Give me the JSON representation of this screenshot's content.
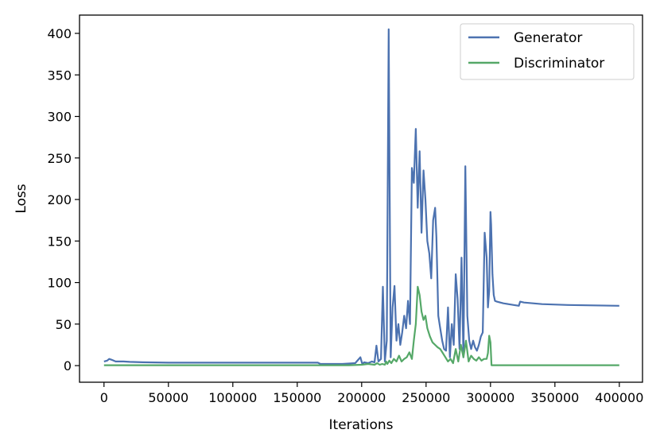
{
  "chart_data": {
    "type": "line",
    "title": "",
    "xlabel": "Iterations",
    "ylabel": "Loss",
    "xlim": [
      -19000,
      418000
    ],
    "ylim": [
      -20,
      422
    ],
    "xticks": [
      0,
      50000,
      100000,
      150000,
      200000,
      250000,
      300000,
      350000,
      400000
    ],
    "yticks": [
      0,
      50,
      100,
      150,
      200,
      250,
      300,
      350,
      400
    ],
    "grid": false,
    "legend": "top-right",
    "series": [
      {
        "name": "Generator",
        "color": "#4c72b0",
        "x": [
          0,
          2500,
          4000,
          6000,
          9000,
          15000,
          20000,
          30000,
          50000,
          80000,
          100000,
          130000,
          150000,
          166000,
          168000,
          175000,
          185000,
          195000,
          199000,
          200500,
          202000,
          205000,
          208000,
          210000,
          211500,
          213000,
          215000,
          216500,
          218000,
          219500,
          221000,
          222500,
          224000,
          225500,
          227000,
          228500,
          230000,
          231500,
          233000,
          234500,
          236000,
          237500,
          239000,
          240500,
          242000,
          243500,
          245000,
          246500,
          248000,
          249500,
          251000,
          252500,
          254000,
          255500,
          257000,
          258000,
          259500,
          261000,
          262500,
          264000,
          265500,
          267000,
          268500,
          270000,
          271500,
          273000,
          274500,
          276000,
          277500,
          279000,
          280500,
          282000,
          283500,
          285000,
          286500,
          288000,
          289500,
          291000,
          292500,
          294000,
          295500,
          297000,
          298000,
          299000,
          300000,
          300500,
          301500,
          302500,
          303500,
          305000,
          310000,
          318000,
          322000,
          323000,
          326000,
          340000,
          360000,
          380000,
          400000
        ],
        "y": [
          5,
          6,
          8,
          7,
          5,
          5,
          4.5,
          4,
          3.5,
          3.5,
          3.5,
          3.5,
          3.5,
          3.5,
          2,
          2,
          2,
          3,
          10,
          2,
          4,
          3,
          5,
          4,
          24,
          5,
          8,
          95,
          5,
          30,
          405,
          10,
          70,
          96,
          30,
          50,
          25,
          40,
          60,
          45,
          78,
          50,
          238,
          220,
          285,
          190,
          258,
          160,
          235,
          200,
          150,
          135,
          105,
          175,
          190,
          155,
          60,
          45,
          30,
          20,
          18,
          70,
          10,
          50,
          25,
          110,
          80,
          20,
          130,
          10,
          240,
          60,
          30,
          20,
          30,
          22,
          18,
          25,
          35,
          40,
          160,
          130,
          70,
          90,
          185,
          170,
          110,
          85,
          78,
          77,
          75,
          73,
          72,
          77,
          76,
          74,
          73,
          72.5,
          72
        ]
      },
      {
        "name": "Discriminator",
        "color": "#55a868",
        "x": [
          0,
          50000,
          100000,
          150000,
          166000,
          170000,
          190000,
          200000,
          205000,
          210000,
          212000,
          214000,
          216000,
          218000,
          219000,
          220000,
          221500,
          223000,
          225000,
          227000,
          229000,
          231000,
          233000,
          235000,
          237000,
          239000,
          240500,
          242000,
          243500,
          245000,
          246500,
          248000,
          249500,
          251000,
          253000,
          255000,
          257000,
          259000,
          261000,
          263000,
          265000,
          267000,
          269000,
          271000,
          273000,
          275000,
          277000,
          279000,
          281000,
          283000,
          285000,
          287000,
          289000,
          291000,
          293000,
          295000,
          297000,
          298000,
          299000,
          300000,
          300800,
          302000,
          310000,
          330000,
          360000,
          400000
        ],
        "y": [
          0.5,
          0.5,
          0.5,
          0.5,
          0.5,
          0.5,
          0.5,
          1,
          2,
          1,
          3,
          1,
          2,
          1,
          5,
          2,
          6,
          3,
          8,
          5,
          12,
          5,
          8,
          10,
          16,
          8,
          30,
          50,
          95,
          85,
          65,
          55,
          60,
          45,
          35,
          28,
          25,
          22,
          20,
          15,
          10,
          5,
          8,
          3,
          20,
          5,
          25,
          10,
          30,
          5,
          12,
          8,
          6,
          10,
          6,
          8,
          8,
          15,
          36,
          28,
          0.5,
          0.5,
          0.5,
          0.5,
          0.5,
          0.5
        ]
      }
    ]
  }
}
